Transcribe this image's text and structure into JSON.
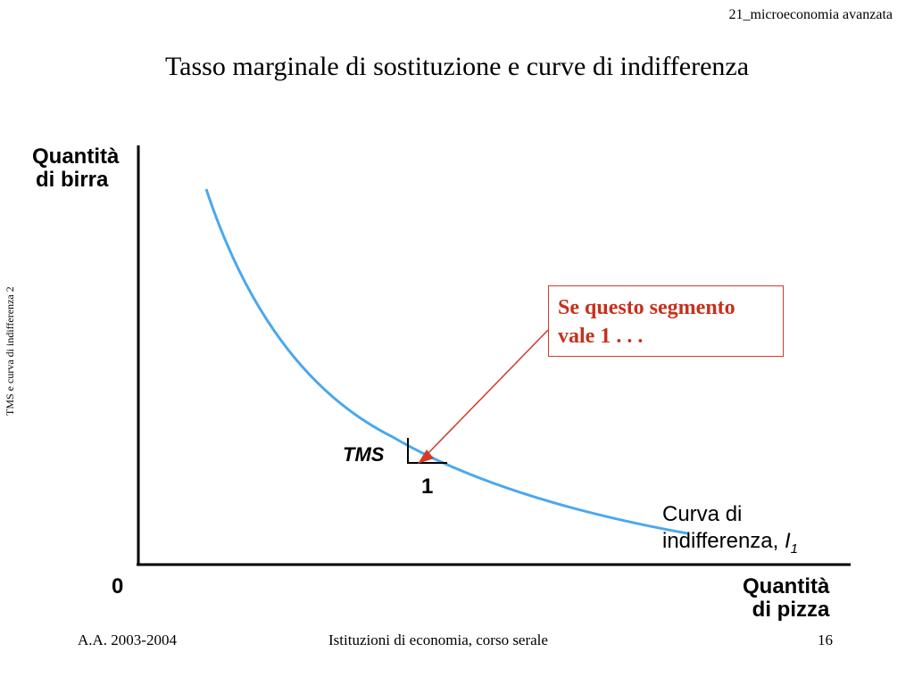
{
  "header": {
    "course": "21_microeconomia avanzata"
  },
  "slide": {
    "title": "Tasso marginale di sostituzione e curve di indifferenza",
    "side_label": "TMS e curva di indifferenza 2"
  },
  "diagram": {
    "y_axis_label_line1": "Quantità",
    "y_axis_label_line2": "di birra",
    "x_axis_label_line1": "Quantità",
    "x_axis_label_line2": "di pizza",
    "origin_label": "0",
    "tms_label": "TMS",
    "one_label": "1",
    "curve_label_line1": "Curva di",
    "curve_label_line2": "indifferenza,",
    "curve_symbol": "I",
    "curve_subscript": "1",
    "callout_line1": "Se questo segmento",
    "callout_line2": "vale 1 . . .",
    "colors": {
      "curve": "#4aa8ee",
      "callout": "#c8301c",
      "axes": "#000000"
    }
  },
  "footer": {
    "left": "A.A. 2003-2004",
    "center": "Istituzioni di economia, corso serale",
    "page": "16"
  }
}
